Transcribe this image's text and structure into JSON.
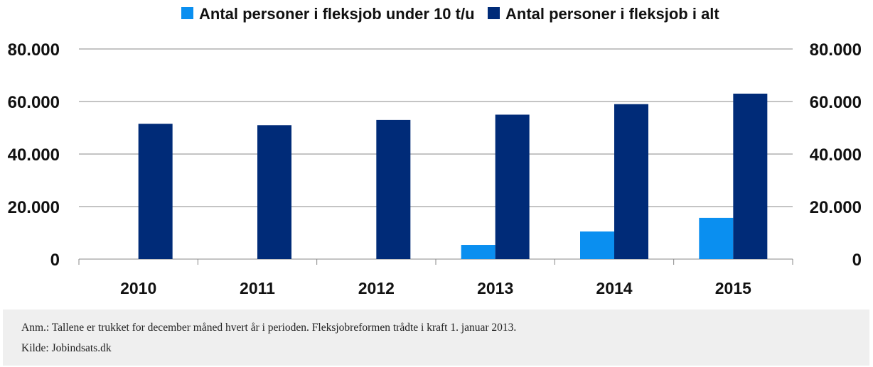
{
  "chart_data": {
    "type": "bar",
    "categories": [
      "2010",
      "2011",
      "2012",
      "2013",
      "2014",
      "2015"
    ],
    "series": [
      {
        "name": "Antal personer i fleksjob under 10 t/u",
        "color": "#0a8ff0",
        "values": [
          0,
          0,
          0,
          5400,
          10500,
          15700
        ]
      },
      {
        "name": "Antal personer i fleksjob i alt",
        "color": "#002b78",
        "values": [
          51500,
          51000,
          53000,
          55000,
          59000,
          63000
        ]
      }
    ],
    "ylim": [
      0,
      80000
    ],
    "yticks": [
      "0",
      "20.000",
      "40.000",
      "60.000",
      "80.000"
    ],
    "ytick_values": [
      0,
      20000,
      40000,
      60000,
      80000
    ],
    "legend_position": "top",
    "grid": true,
    "gridline_color": "#888888"
  },
  "footer": {
    "note": "Anm.: Tallene er trukket for december måned hvert år i perioden. Fleksjobreformen trådte i kraft 1. januar 2013.",
    "source": "Kilde: Jobindsats.dk"
  }
}
